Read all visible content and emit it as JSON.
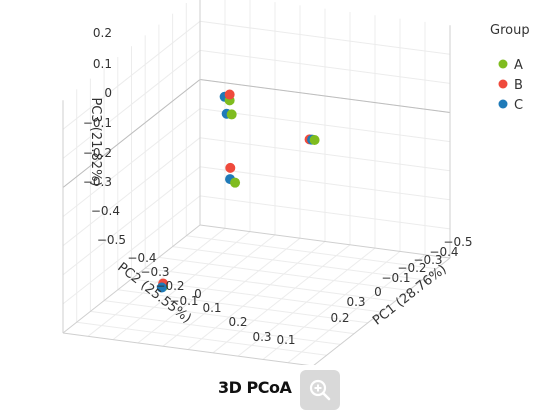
{
  "chart_data": {
    "type": "scatter",
    "dimensions": "3d",
    "title": "3D PCoA",
    "xlabel": "PC1 (28.76%)",
    "ylabel": "PC2 (25.55%)",
    "zlabel": "PC3 (21.82%)",
    "x_ticks": [
      "0.1",
      "0.2",
      "0.3",
      "0",
      "−0.1",
      "−0.2",
      "−0.3",
      "−0.4",
      "−0.5"
    ],
    "y_ticks": [
      "−0.4",
      "−0.3",
      "−0.2",
      "−0.1",
      "0",
      "0.1",
      "0.2",
      "0.3"
    ],
    "z_ticks": [
      "0.2",
      "0.1",
      "0",
      "−0.1",
      "−0.2",
      "−0.3",
      "−0.4",
      "−0.5"
    ],
    "legend": {
      "title": "Group",
      "placement": "top-right"
    },
    "grid": true,
    "series": [
      {
        "name": "A",
        "color": "#7fbc1f",
        "points": [
          {
            "pc1": -0.08,
            "pc2": 0.05,
            "pc3": 0.18
          },
          {
            "pc1": -0.05,
            "pc2": 0.09,
            "pc3": 0.15
          },
          {
            "pc1": -0.02,
            "pc2": 0.12,
            "pc3": -0.07
          },
          {
            "pc1": -0.22,
            "pc2": 0.28,
            "pc3": -0.39
          },
          {
            "pc1": 0.32,
            "pc2": 0.16,
            "pc3": 0.13
          }
        ]
      },
      {
        "name": "B",
        "color": "#ef4a3c",
        "points": [
          {
            "pc1": -0.08,
            "pc2": 0.05,
            "pc3": 0.2
          },
          {
            "pc1": -0.05,
            "pc2": 0.1,
            "pc3": -0.03
          },
          {
            "pc1": -0.22,
            "pc2": 0.28,
            "pc3": -0.38
          },
          {
            "pc1": 0.3,
            "pc2": 0.16,
            "pc3": 0.13
          }
        ]
      },
      {
        "name": "C",
        "color": "#1f7ab8",
        "points": [
          {
            "pc1": -0.1,
            "pc2": 0.05,
            "pc3": 0.19
          },
          {
            "pc1": -0.07,
            "pc2": 0.09,
            "pc3": 0.15
          },
          {
            "pc1": -0.04,
            "pc2": 0.12,
            "pc3": -0.06
          },
          {
            "pc1": -0.22,
            "pc2": 0.29,
            "pc3": -0.39
          },
          {
            "pc1": 0.31,
            "pc2": 0.16,
            "pc3": 0.13
          }
        ]
      }
    ]
  },
  "toolbar": {
    "zoom_icon": "zoom-in-icon"
  }
}
